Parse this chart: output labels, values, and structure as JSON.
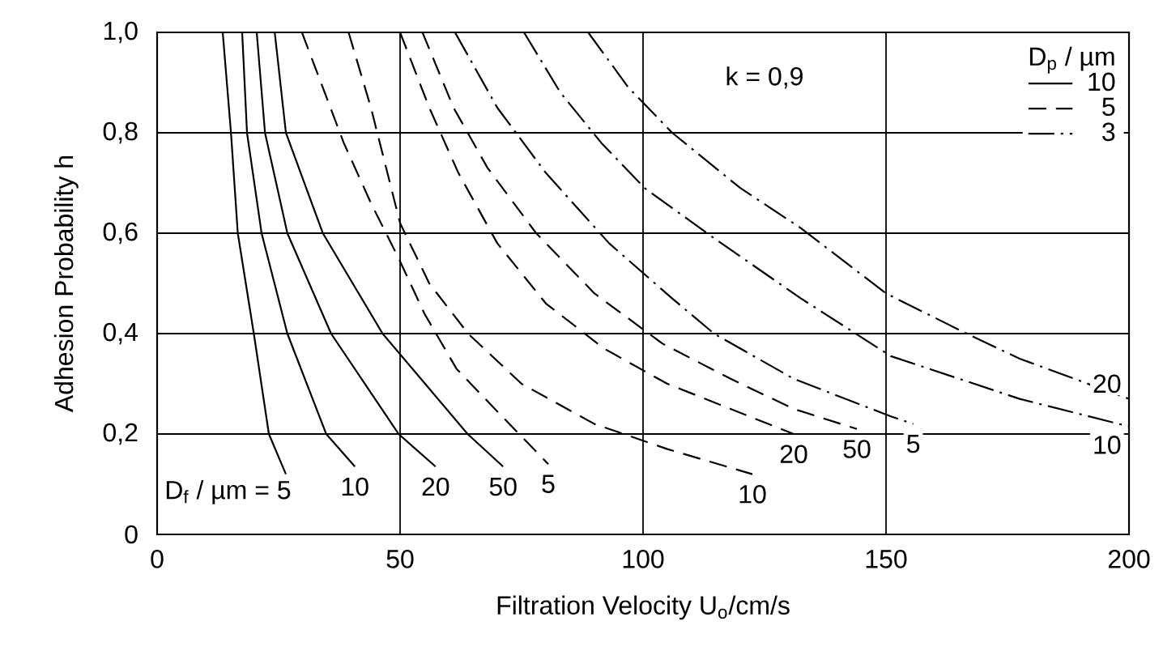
{
  "chart_data": {
    "type": "line",
    "xlabel": "Filtration Velocity    U$_{o}$/cm/s",
    "ylabel": "Adhesion Probability    h",
    "legend_title": "D$_{p}$ / µm",
    "legend": "top right",
    "grid": true,
    "marker": "none",
    "xlim": [
      0,
      200
    ],
    "xticks": [
      0,
      50,
      100,
      150,
      200
    ],
    "ylim": [
      0,
      1
    ],
    "yticks": [
      0,
      {
        "value": 0.2,
        "label": "0,2"
      },
      {
        "value": 0.4,
        "label": "0,4"
      },
      {
        "value": 0.6,
        "label": "0,6"
      },
      {
        "value": 0.8,
        "label": "0,8"
      },
      {
        "value": 1.0,
        "label": "1,0"
      }
    ],
    "series": [
      {
        "name": "10",
        "color": "#000000",
        "line_style": "solid",
        "x": [
          13.5,
          15.2,
          16.6,
          19.9,
          23,
          26.5
        ],
        "values": [
          1.0,
          0.8,
          0.6,
          0.4,
          0.2,
          0.12
        ]
      },
      {
        "color": "#000000",
        "line_style": "solid",
        "x": [
          17.5,
          18.5,
          21.5,
          26.8,
          34.8,
          40.7
        ],
        "values": [
          1.0,
          0.8,
          0.6,
          0.4,
          0.2,
          0.135
        ]
      },
      {
        "color": "#000000",
        "line_style": "solid",
        "x": [
          20.5,
          22.2,
          26.8,
          35.8,
          49.7,
          57.3
        ],
        "values": [
          1.0,
          0.8,
          0.6,
          0.4,
          0.2,
          0.135
        ]
      },
      {
        "color": "#000000",
        "line_style": "solid",
        "x": [
          24.2,
          26.5,
          34.1,
          46.4,
          63.9,
          71.2
        ],
        "values": [
          1.0,
          0.8,
          0.6,
          0.4,
          0.2,
          0.135
        ]
      },
      {
        "name": "5",
        "color": "#000000",
        "line_style": "dashed",
        "x": [
          29.8,
          34.1,
          38.4,
          44,
          49.7,
          55,
          61.6,
          69.5,
          80.5
        ],
        "values": [
          1.0,
          0.89,
          0.78,
          0.66,
          0.55,
          0.44,
          0.33,
          0.25,
          0.14
        ]
      },
      {
        "color": "#000000",
        "line_style": "dashed",
        "x": [
          39.4,
          44,
          50,
          56,
          64,
          75,
          90,
          105,
          122.5
        ],
        "values": [
          1.0,
          0.85,
          0.62,
          0.5,
          0.4,
          0.3,
          0.22,
          0.17,
          0.12
        ]
      },
      {
        "color": "#000000",
        "line_style": "dashed",
        "x": [
          50,
          56,
          62,
          70,
          80,
          92,
          105,
          118,
          131
        ],
        "values": [
          1.0,
          0.85,
          0.72,
          0.58,
          0.46,
          0.37,
          0.3,
          0.25,
          0.2
        ]
      },
      {
        "color": "#000000",
        "line_style": "dashed",
        "x": [
          54.6,
          61,
          68,
          78,
          90,
          104,
          118,
          131,
          144
        ],
        "values": [
          1.0,
          0.85,
          0.73,
          0.6,
          0.48,
          0.38,
          0.31,
          0.25,
          0.21
        ]
      },
      {
        "name": "3",
        "color": "#000000",
        "line_style": "dashdot",
        "x": [
          61.3,
          70,
          80,
          93,
          106,
          114.6,
          131,
          151,
          155.6
        ],
        "values": [
          1.0,
          0.85,
          0.72,
          0.58,
          0.47,
          0.4,
          0.31,
          0.235,
          0.22
        ]
      },
      {
        "color": "#000000",
        "line_style": "dashdot",
        "x": [
          75.5,
          83,
          91.4,
          100.3,
          114.6,
          132.5,
          151,
          177.5,
          200
        ],
        "values": [
          1.0,
          0.88,
          0.78,
          0.69,
          0.59,
          0.47,
          0.355,
          0.27,
          0.215
        ]
      },
      {
        "color": "#000000",
        "line_style": "dashdot",
        "x": [
          88.7,
          97,
          106,
          120,
          132.5,
          150,
          166.6,
          177.5,
          200
        ],
        "values": [
          1.0,
          0.89,
          0.8,
          0.69,
          0.61,
          0.48,
          0.4,
          0.35,
          0.27
        ]
      }
    ],
    "annotations": [
      {
        "text": "D$_{f}$ / µm = 5",
        "x": 26.5,
        "y": 0.12
      },
      {
        "text": "10",
        "x": 40.7,
        "y": 0.135
      },
      {
        "text": "20",
        "x": 57.3,
        "y": 0.135
      },
      {
        "text": "50",
        "x": 71.2,
        "y": 0.135
      },
      {
        "text": "5",
        "x": 80.5,
        "y": 0.14
      },
      {
        "text": "10",
        "x": 122.5,
        "y": 0.12
      },
      {
        "text": "20",
        "x": 131,
        "y": 0.2
      },
      {
        "text": "50",
        "x": 144,
        "y": 0.21
      },
      {
        "text": "5",
        "x": 155.6,
        "y": 0.22
      },
      {
        "text": "20",
        "x": 200,
        "y": 0.27
      },
      {
        "text": "10",
        "x": 200,
        "y": 0.215
      },
      "k = 0,9"
    ]
  }
}
